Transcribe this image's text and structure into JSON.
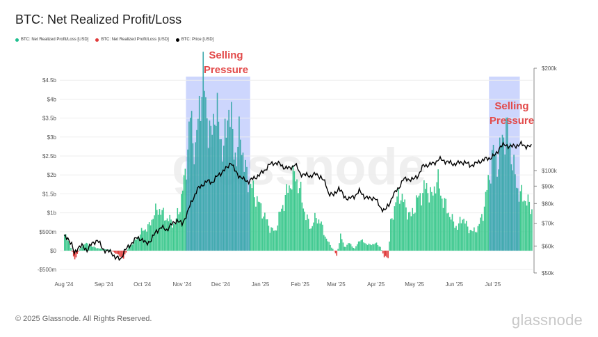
{
  "title": "BTC: Net Realized Profit/Loss",
  "legend": [
    {
      "label": "BTC: Net Realized Profit/Loss [USD]",
      "color": "#1fbf8f"
    },
    {
      "label": "BTC: Net Realized Profit/Loss [USD]",
      "color": "#e03a3a"
    },
    {
      "label": "BTC: Price [USD]",
      "color": "#000000"
    }
  ],
  "footer": "© 2025 Glassnode. All Rights Reserved.",
  "brand": "glassnode",
  "watermark": "glassnode",
  "annotations": [
    "Selling Pressure",
    "Selling Pressure"
  ],
  "chart_data": {
    "type": "bar",
    "title": "BTC: Net Realized Profit/Loss",
    "x_range": [
      "2024-08-01",
      "2025-07-31"
    ],
    "month_labels": [
      {
        "label": "Aug '24",
        "day": 0
      },
      {
        "label": "Sep '24",
        "day": 31
      },
      {
        "label": "Oct '24",
        "day": 61
      },
      {
        "label": "Nov '24",
        "day": 92
      },
      {
        "label": "Dec '24",
        "day": 122
      },
      {
        "label": "Jan '25",
        "day": 153
      },
      {
        "label": "Feb '25",
        "day": 184
      },
      {
        "label": "Mar '25",
        "day": 212
      },
      {
        "label": "Apr '25",
        "day": 243
      },
      {
        "label": "May '25",
        "day": 273
      },
      {
        "label": "Jun '25",
        "day": 304
      },
      {
        "label": "Jul '25",
        "day": 334
      }
    ],
    "left_axis": {
      "unit": "USD",
      "ylim": [
        -500000000,
        5000000000
      ],
      "ticks": [
        {
          "value": -500000000,
          "label": "-$500m"
        },
        {
          "value": 0,
          "label": "$0"
        },
        {
          "value": 500000000,
          "label": "$500m"
        },
        {
          "value": 1000000000,
          "label": "$1b"
        },
        {
          "value": 1500000000,
          "label": "$1.5b"
        },
        {
          "value": 2000000000,
          "label": "$2b"
        },
        {
          "value": 2500000000,
          "label": "$2.5b"
        },
        {
          "value": 3000000000,
          "label": "$3b"
        },
        {
          "value": 3500000000,
          "label": "$3.5b"
        },
        {
          "value": 4000000000,
          "label": "$4b"
        },
        {
          "value": 4500000000,
          "label": "$4.5b"
        }
      ]
    },
    "right_axis": {
      "unit": "USD",
      "scale": "log",
      "ylim": [
        50000,
        200000
      ],
      "ticks": [
        {
          "value": 50000,
          "label": "$50k"
        },
        {
          "value": 60000,
          "label": "$60k"
        },
        {
          "value": 70000,
          "label": "$70k"
        },
        {
          "value": 80000,
          "label": "$80k"
        },
        {
          "value": 90000,
          "label": "$90k"
        },
        {
          "value": 100000,
          "label": "$100k"
        },
        {
          "value": 200000,
          "label": "$200k"
        }
      ]
    },
    "nrpl_keypoints": [
      [
        0,
        0.42
      ],
      [
        4,
        0.2
      ],
      [
        8,
        -0.25
      ],
      [
        12,
        0.05
      ],
      [
        16,
        0.2
      ],
      [
        22,
        0.1
      ],
      [
        28,
        0.05
      ],
      [
        36,
        0.02
      ],
      [
        42,
        -0.12
      ],
      [
        46,
        -0.2
      ],
      [
        50,
        0.1
      ],
      [
        56,
        0.3
      ],
      [
        60,
        0.5
      ],
      [
        66,
        0.65
      ],
      [
        70,
        1.0
      ],
      [
        74,
        1.1
      ],
      [
        78,
        0.9
      ],
      [
        82,
        0.8
      ],
      [
        86,
        0.7
      ],
      [
        90,
        1.2
      ],
      [
        94,
        2.0
      ],
      [
        98,
        3.5
      ],
      [
        102,
        2.6
      ],
      [
        106,
        4.2
      ],
      [
        108,
        4.5
      ],
      [
        111,
        3.6
      ],
      [
        114,
        2.9
      ],
      [
        117,
        3.8
      ],
      [
        120,
        3.3
      ],
      [
        124,
        2.6
      ],
      [
        128,
        3.9
      ],
      [
        131,
        3.0
      ],
      [
        134,
        2.4
      ],
      [
        137,
        3.2
      ],
      [
        140,
        2.2
      ],
      [
        144,
        1.8
      ],
      [
        148,
        1.5
      ],
      [
        152,
        1.2
      ],
      [
        156,
        0.9
      ],
      [
        160,
        0.6
      ],
      [
        164,
        0.5
      ],
      [
        168,
        1.0
      ],
      [
        172,
        1.4
      ],
      [
        176,
        1.8
      ],
      [
        180,
        2.0
      ],
      [
        184,
        1.5
      ],
      [
        188,
        0.9
      ],
      [
        192,
        0.6
      ],
      [
        196,
        0.9
      ],
      [
        200,
        0.7
      ],
      [
        204,
        0.3
      ],
      [
        208,
        0.1
      ],
      [
        212,
        -0.12
      ],
      [
        215,
        0.4
      ],
      [
        218,
        0.1
      ],
      [
        222,
        0.2
      ],
      [
        226,
        0.05
      ],
      [
        230,
        0.3
      ],
      [
        234,
        0.2
      ],
      [
        238,
        0.15
      ],
      [
        242,
        0.2
      ],
      [
        246,
        0.1
      ],
      [
        249,
        -0.15
      ],
      [
        252,
        -0.2
      ],
      [
        254,
        0.7
      ],
      [
        258,
        1.3
      ],
      [
        262,
        1.5
      ],
      [
        266,
        1.1
      ],
      [
        270,
        0.9
      ],
      [
        274,
        1.3
      ],
      [
        278,
        1.5
      ],
      [
        282,
        1.7
      ],
      [
        286,
        1.4
      ],
      [
        290,
        1.9
      ],
      [
        294,
        1.4
      ],
      [
        298,
        1.1
      ],
      [
        302,
        0.8
      ],
      [
        306,
        0.6
      ],
      [
        310,
        0.9
      ],
      [
        314,
        0.6
      ],
      [
        318,
        0.5
      ],
      [
        322,
        0.6
      ],
      [
        326,
        1.0
      ],
      [
        330,
        1.8
      ],
      [
        334,
        2.6
      ],
      [
        338,
        2.3
      ],
      [
        341,
        3.0
      ],
      [
        344,
        3.2
      ],
      [
        347,
        2.8
      ],
      [
        350,
        2.1
      ],
      [
        354,
        1.5
      ],
      [
        358,
        1.4
      ],
      [
        362,
        1.2
      ],
      [
        364,
        1.1
      ]
    ],
    "price_keypoints": [
      [
        0,
        64000
      ],
      [
        3,
        63500
      ],
      [
        6,
        60500
      ],
      [
        8,
        57000
      ],
      [
        11,
        59500
      ],
      [
        14,
        60000
      ],
      [
        18,
        58500
      ],
      [
        22,
        61000
      ],
      [
        26,
        62500
      ],
      [
        30,
        59000
      ],
      [
        33,
        58000
      ],
      [
        37,
        57500
      ],
      [
        40,
        55500
      ],
      [
        44,
        54800
      ],
      [
        47,
        58000
      ],
      [
        50,
        59500
      ],
      [
        54,
        62000
      ],
      [
        57,
        63500
      ],
      [
        60,
        63000
      ],
      [
        64,
        61000
      ],
      [
        68,
        62500
      ],
      [
        72,
        66500
      ],
      [
        76,
        68000
      ],
      [
        80,
        67000
      ],
      [
        84,
        69500
      ],
      [
        88,
        71500
      ],
      [
        92,
        69500
      ],
      [
        96,
        75000
      ],
      [
        100,
        82000
      ],
      [
        104,
        88000
      ],
      [
        108,
        91000
      ],
      [
        112,
        93000
      ],
      [
        116,
        92500
      ],
      [
        120,
        97000
      ],
      [
        124,
        99500
      ],
      [
        127,
        102000
      ],
      [
        130,
        106000
      ],
      [
        133,
        100000
      ],
      [
        137,
        96000
      ],
      [
        140,
        94000
      ],
      [
        144,
        93000
      ],
      [
        148,
        95000
      ],
      [
        152,
        97000
      ],
      [
        156,
        100000
      ],
      [
        160,
        104000
      ],
      [
        164,
        105500
      ],
      [
        168,
        104500
      ],
      [
        172,
        102000
      ],
      [
        176,
        101500
      ],
      [
        180,
        104500
      ],
      [
        184,
        98000
      ],
      [
        188,
        97000
      ],
      [
        192,
        96500
      ],
      [
        196,
        97500
      ],
      [
        200,
        96000
      ],
      [
        204,
        91000
      ],
      [
        206,
        86000
      ],
      [
        210,
        84500
      ],
      [
        214,
        89000
      ],
      [
        218,
        84000
      ],
      [
        222,
        82500
      ],
      [
        226,
        84000
      ],
      [
        230,
        87000
      ],
      [
        234,
        84000
      ],
      [
        238,
        82500
      ],
      [
        242,
        83500
      ],
      [
        246,
        78000
      ],
      [
        250,
        76500
      ],
      [
        253,
        79000
      ],
      [
        256,
        84500
      ],
      [
        260,
        88000
      ],
      [
        264,
        94000
      ],
      [
        268,
        94500
      ],
      [
        272,
        94000
      ],
      [
        276,
        97000
      ],
      [
        280,
        103500
      ],
      [
        284,
        104000
      ],
      [
        288,
        105000
      ],
      [
        292,
        108000
      ],
      [
        296,
        107000
      ],
      [
        300,
        105500
      ],
      [
        304,
        104500
      ],
      [
        308,
        105500
      ],
      [
        312,
        106000
      ],
      [
        316,
        103500
      ],
      [
        320,
        104500
      ],
      [
        324,
        106500
      ],
      [
        328,
        108000
      ],
      [
        332,
        109000
      ],
      [
        336,
        111000
      ],
      [
        340,
        118000
      ],
      [
        344,
        119000
      ],
      [
        348,
        117500
      ],
      [
        352,
        118500
      ],
      [
        356,
        119500
      ],
      [
        360,
        118000
      ],
      [
        364,
        117500
      ]
    ],
    "highlights": [
      {
        "label": "Selling Pressure",
        "start_day": 95,
        "end_day": 145
      },
      {
        "label": "Selling Pressure",
        "start_day": 331,
        "end_day": 355
      }
    ]
  }
}
